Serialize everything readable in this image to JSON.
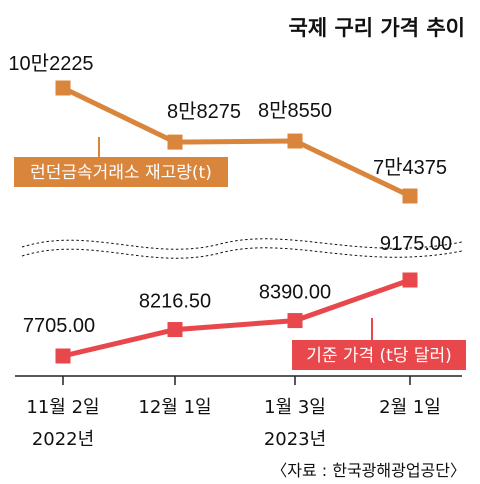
{
  "chart_data": {
    "title": "국제 구리 가격 추이",
    "source": "〈자료 : 한국광해광업공단〉",
    "categories": [
      "11월 2일",
      "12월 1일",
      "1월 3일",
      "2월 1일"
    ],
    "year_labels": [
      {
        "category_index": 0,
        "text": "2022년"
      },
      {
        "category_index": 2,
        "text": "2023년"
      }
    ],
    "series": [
      {
        "name": "런던금속거래소 재고량(t)",
        "type": "line",
        "color": "#d9853c",
        "points": [
          {
            "category_index": 0,
            "value": 102225,
            "label": "10만2225"
          },
          {
            "category_index": 1,
            "value": 88275,
            "label": "8만8275"
          },
          {
            "category_index": 2,
            "value": 88550,
            "label": "8만8550"
          },
          {
            "category_index": 3,
            "value": 74375,
            "label": "7만4375"
          }
        ]
      },
      {
        "name": "기준 가격 (t당 달러)",
        "type": "line",
        "color": "#e8474b",
        "points": [
          {
            "category_index": 0,
            "value": 7705.0,
            "label": "7705.00"
          },
          {
            "category_index": 1,
            "value": 8216.5,
            "label": "8216.50"
          },
          {
            "category_index": 2,
            "value": 8390.0,
            "label": "8390.00"
          },
          {
            "category_index": 3,
            "value": 9175.0,
            "label": "9175.00"
          }
        ]
      }
    ],
    "axis_break": true
  }
}
